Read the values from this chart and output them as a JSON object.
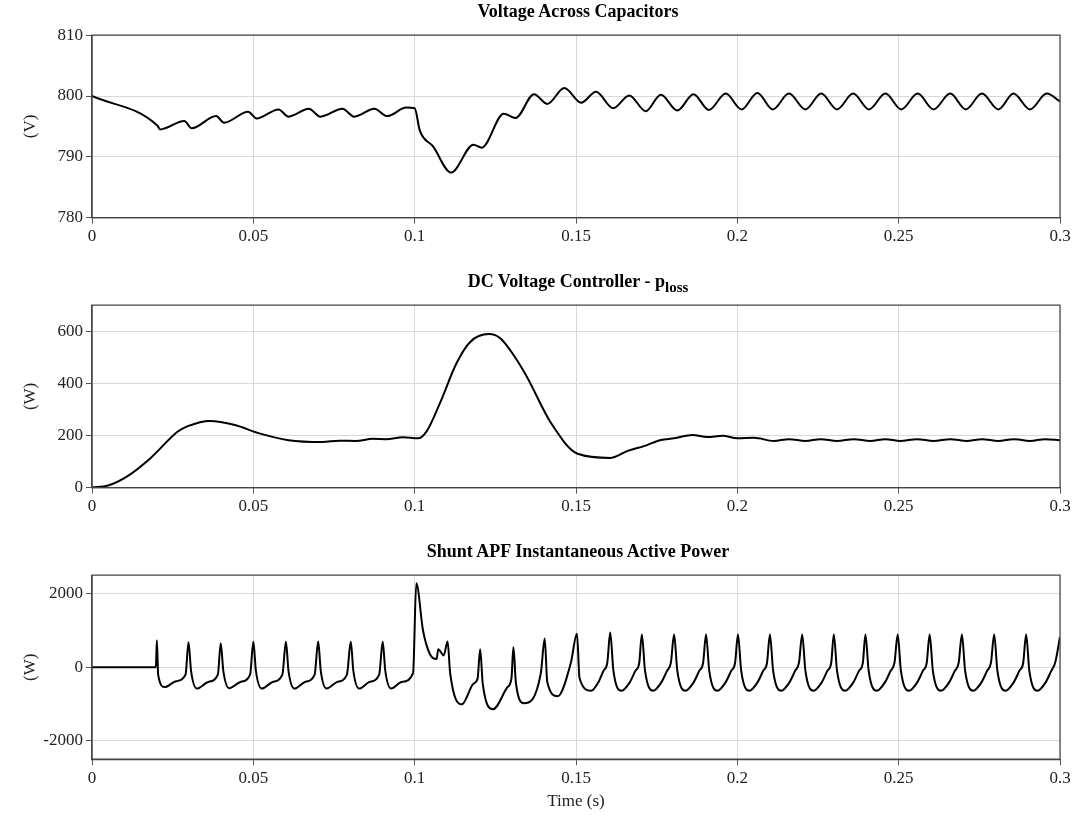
{
  "chart_data": [
    {
      "type": "line",
      "title": "Voltage Across Capacitors",
      "ylabel": "(V)",
      "color": "#000000",
      "grid": true,
      "xlim": [
        0,
        0.3
      ],
      "xticks": [
        0,
        0.05,
        0.1,
        0.15,
        0.2,
        0.25,
        0.3
      ],
      "ylim": [
        780,
        810
      ],
      "yticks": [
        780,
        790,
        800,
        810
      ],
      "x": [
        0,
        0.0203,
        0.0211,
        0.0286,
        0.0309,
        0.0385,
        0.0409,
        0.0484,
        0.051,
        0.0578,
        0.0609,
        0.0672,
        0.0708,
        0.0776,
        0.0813,
        0.0875,
        0.0915,
        0.0974,
        0.1,
        0.1016,
        0.1057,
        0.1113,
        0.1182,
        0.1208,
        0.1276,
        0.1313,
        0.137,
        0.1411,
        0.1464,
        0.1516,
        0.1562,
        0.1615,
        0.1665,
        0.1716,
        0.1763,
        0.1814,
        0.1864,
        0.1912,
        0.1964,
        0.2013,
        0.2062,
        0.211,
        0.216,
        0.2211,
        0.226,
        0.2309,
        0.2359,
        0.2408,
        0.2459,
        0.2508,
        0.2559,
        0.2608,
        0.266,
        0.2708,
        0.2758,
        0.2809,
        0.2856,
        0.2907,
        0.2959,
        0.3
      ],
      "values": [
        800,
        795.1,
        794.5,
        795.9,
        794.7,
        796.7,
        795.6,
        797.4,
        796.3,
        797.8,
        796.6,
        797.9,
        796.6,
        797.9,
        796.6,
        797.9,
        796.7,
        798.1,
        798,
        794.3,
        791.7,
        787.4,
        792,
        791.5,
        797.1,
        796.4,
        800.3,
        798.7,
        801.3,
        798.9,
        800.7,
        798,
        800.1,
        797.5,
        800.2,
        797.6,
        800.3,
        797.7,
        800.4,
        797.8,
        800.5,
        797.8,
        800.4,
        797.8,
        800.4,
        797.8,
        800.4,
        797.8,
        800.4,
        797.8,
        800.4,
        797.8,
        800.4,
        797.8,
        800.4,
        797.8,
        800.4,
        797.8,
        800.4,
        799.1
      ]
    },
    {
      "type": "line",
      "title": "DC Voltage Controller - p$_{loss}$",
      "ylabel": "(W)",
      "color": "#000000",
      "grid": true,
      "xlim": [
        0,
        0.3
      ],
      "xticks": [
        0,
        0.05,
        0.1,
        0.15,
        0.2,
        0.25,
        0.3
      ],
      "ylim": [
        0,
        700
      ],
      "yticks": [
        0,
        200,
        400,
        600
      ],
      "x": [
        0,
        0.005,
        0.0109,
        0.0182,
        0.0266,
        0.0297,
        0.0365,
        0.0443,
        0.0516,
        0.0609,
        0.0714,
        0.0766,
        0.0818,
        0.087,
        0.0911,
        0.0964,
        0.101,
        0.1037,
        0.1078,
        0.113,
        0.1172,
        0.123,
        0.1266,
        0.1339,
        0.1422,
        0.1505,
        0.1608,
        0.166,
        0.1711,
        0.1763,
        0.1804,
        0.1861,
        0.1907,
        0.1954,
        0.2,
        0.2052,
        0.2113,
        0.216,
        0.2211,
        0.2258,
        0.2309,
        0.2361,
        0.2412,
        0.2459,
        0.2505,
        0.2557,
        0.2608,
        0.266,
        0.2711,
        0.2758,
        0.2809,
        0.2856,
        0.2907,
        0.2954,
        0.3
      ],
      "values": [
        0,
        8,
        43,
        114,
        215,
        236,
        256,
        240,
        209,
        182,
        175,
        180,
        179,
        187,
        186,
        193,
        189,
        216,
        323,
        478,
        559,
        589,
        572,
        445,
        249,
        130,
        114,
        141,
        159,
        183,
        189,
        202,
        194,
        199,
        189,
        191,
        179,
        186,
        179,
        186,
        179,
        186,
        179,
        186,
        179,
        186,
        179,
        186,
        179,
        186,
        179,
        186,
        179,
        186,
        182
      ]
    },
    {
      "type": "line",
      "title": "Shunt APF Instantaneous Active Power",
      "ylabel": "(W)",
      "xlabel": "Time (s)",
      "color": "#000000",
      "grid": true,
      "xlim": [
        0,
        0.3
      ],
      "xticks": [
        0,
        0.05,
        0.1,
        0.15,
        0.2,
        0.25,
        0.3
      ],
      "ylim": [
        -2500,
        2500
      ],
      "yticks": [
        -2000,
        0,
        2000
      ],
      "x": [
        0,
        0.0198,
        0.0201,
        0.0205,
        0.0225,
        0.026,
        0.029,
        0.0299,
        0.0307,
        0.0325,
        0.036,
        0.039,
        0.0399,
        0.0407,
        0.0425,
        0.046,
        0.049,
        0.05,
        0.0508,
        0.0526,
        0.056,
        0.059,
        0.0601,
        0.0609,
        0.0627,
        0.066,
        0.069,
        0.0701,
        0.0709,
        0.0727,
        0.076,
        0.079,
        0.0802,
        0.081,
        0.0828,
        0.086,
        0.089,
        0.0901,
        0.0909,
        0.0927,
        0.096,
        0.0995,
        0.1005,
        0.1026,
        0.1047,
        0.1068,
        0.1073,
        0.109,
        0.1102,
        0.111,
        0.1146,
        0.1182,
        0.1195,
        0.1203,
        0.1211,
        0.1243,
        0.1287,
        0.13,
        0.1306,
        0.1314,
        0.1339,
        0.1391,
        0.1403,
        0.1411,
        0.1443,
        0.1484,
        0.1503,
        0.1511,
        0.1547,
        0.157,
        0.1585,
        0.1597,
        0.1606,
        0.1616,
        0.1641,
        0.1666,
        0.1684,
        0.1696,
        0.1704,
        0.1714,
        0.1739,
        0.1764,
        0.1782,
        0.1794,
        0.1804,
        0.1814,
        0.1839,
        0.1864,
        0.1882,
        0.1894,
        0.1903,
        0.1913,
        0.1938,
        0.1963,
        0.1981,
        0.1993,
        0.2002,
        0.2012,
        0.2037,
        0.2062,
        0.208,
        0.2092,
        0.2101,
        0.2111,
        0.2136,
        0.2161,
        0.2179,
        0.2191,
        0.2201,
        0.2211,
        0.2236,
        0.2261,
        0.2279,
        0.2291,
        0.2299,
        0.2309,
        0.2334,
        0.2359,
        0.2377,
        0.2389,
        0.2397,
        0.2407,
        0.2432,
        0.2457,
        0.2475,
        0.2487,
        0.2497,
        0.2507,
        0.2532,
        0.2557,
        0.2575,
        0.2587,
        0.2596,
        0.2606,
        0.2631,
        0.2656,
        0.2674,
        0.2686,
        0.2696,
        0.2706,
        0.2731,
        0.2756,
        0.2774,
        0.2786,
        0.2796,
        0.2806,
        0.2831,
        0.2856,
        0.2874,
        0.2886,
        0.2895,
        0.2905,
        0.293,
        0.2955,
        0.2973,
        0.2985,
        0.3
      ],
      "values": [
        0,
        0,
        730,
        -200,
        -540,
        -380,
        -200,
        680,
        -100,
        -580,
        -400,
        -200,
        650,
        -100,
        -570,
        -400,
        -200,
        690,
        -100,
        -580,
        -400,
        -200,
        690,
        -100,
        -580,
        -400,
        -200,
        700,
        -100,
        -580,
        -400,
        -200,
        690,
        -100,
        -580,
        -400,
        -200,
        690,
        -100,
        -580,
        -400,
        -160,
        2280,
        990,
        360,
        220,
        490,
        320,
        700,
        -160,
        -1010,
        -450,
        -310,
        490,
        -450,
        -1140,
        -550,
        -300,
        540,
        -450,
        -980,
        -160,
        780,
        -400,
        -790,
        120,
        910,
        -300,
        -640,
        -400,
        -100,
        120,
        940,
        -100,
        -640,
        -420,
        -100,
        120,
        890,
        -100,
        -640,
        -420,
        -100,
        120,
        890,
        -100,
        -640,
        -420,
        -100,
        120,
        890,
        -100,
        -640,
        -420,
        -100,
        120,
        890,
        -100,
        -640,
        -420,
        -100,
        120,
        890,
        -100,
        -640,
        -420,
        -100,
        120,
        890,
        -100,
        -640,
        -420,
        -100,
        120,
        890,
        -100,
        -640,
        -420,
        -100,
        120,
        890,
        -100,
        -640,
        -420,
        -100,
        120,
        890,
        -100,
        -640,
        -420,
        -100,
        120,
        890,
        -100,
        -640,
        -420,
        -100,
        120,
        890,
        -100,
        -640,
        -420,
        -100,
        120,
        890,
        -100,
        -640,
        -420,
        -100,
        120,
        890,
        -100,
        -640,
        -420,
        -100,
        120,
        820
      ]
    }
  ]
}
